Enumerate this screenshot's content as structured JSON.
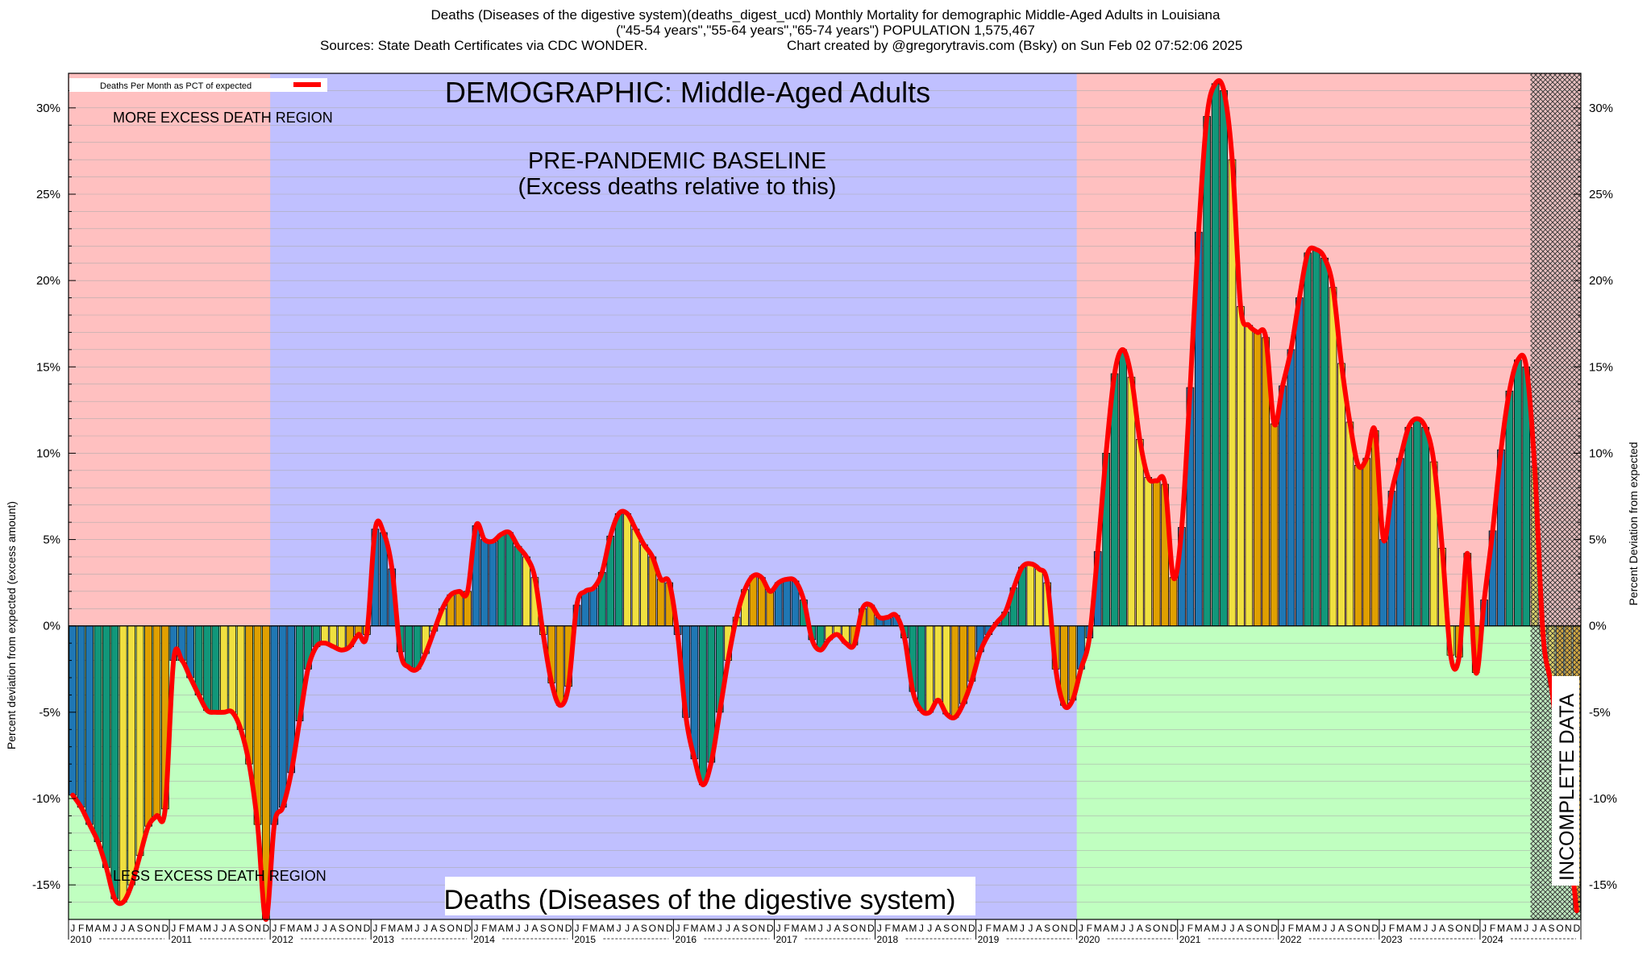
{
  "header": {
    "line1": "Deaths (Diseases of the digestive system)(deaths_digest_ucd) Monthly Mortality for demographic Middle-Aged Adults in Louisiana",
    "line2": "(\"45-54 years\",\"55-64 years\",\"65-74 years\") POPULATION 1,575,467",
    "line3_left": "Sources: State Death Certificates via CDC WONDER.",
    "line3_right": "Chart created by @gregorytravis.com (Bsky) on Sun Feb 02 07:52:06 2025"
  },
  "labels": {
    "demographic": "DEMOGRAPHIC: Middle-Aged Adults",
    "baseline_line1": "PRE-PANDEMIC BASELINE",
    "baseline_line2": "(Excess deaths relative to this)",
    "more_region": "MORE EXCESS DEATH REGION",
    "less_region": "LESS EXCESS DEATH REGION",
    "bottom_title": "Deaths (Diseases of the digestive system)",
    "incomplete": "INCOMPLETE DATA",
    "legend": "Deaths Per Month as PCT of expected",
    "ylabel_left": "Percent deviation from expected (excess amount)",
    "ylabel_right": "Percent Deviation from expected"
  },
  "colors": {
    "more_region": "#ffc0c0",
    "less_region": "#c0ffc0",
    "baseline_region": "#c0c0ff",
    "line": "#ff0000",
    "bar_colors": [
      "#1f77b4",
      "#11977a",
      "#f0e040",
      "#e0a000"
    ]
  },
  "chart_data": {
    "type": "bar",
    "start": "2010-01",
    "ylim": [
      -17,
      32
    ],
    "yticks": [
      -15,
      -10,
      -5,
      0,
      5,
      10,
      15,
      20,
      25,
      30
    ],
    "ytick_labels": [
      "-15%",
      "-10%",
      "-5%",
      "0%",
      "5%",
      "10%",
      "15%",
      "20%",
      "25%",
      "30%"
    ],
    "month_letters": [
      "J",
      "F",
      "M",
      "A",
      "M",
      "J",
      "J",
      "A",
      "S",
      "O",
      "N",
      "D"
    ],
    "years": [
      "2010",
      "2011",
      "2012",
      "2013",
      "2014",
      "2015",
      "2016",
      "2017",
      "2018",
      "2019",
      "2020",
      "2021",
      "2022",
      "2023",
      "2024"
    ],
    "baseline_years": [
      "2012",
      "2019"
    ],
    "incomplete_from": "2024-07",
    "series_name": "Deaths Per Month as PCT of expected",
    "values": [
      -9.8,
      -10.5,
      -11.5,
      -12.5,
      -14.0,
      -15.8,
      -16.0,
      -15.0,
      -13.3,
      -11.6,
      -11.0,
      -10.6,
      -2.0,
      -2.0,
      -3.0,
      -4.0,
      -4.9,
      -5.0,
      -5.0,
      -5.0,
      -6.0,
      -8.0,
      -11.5,
      -17.0,
      -11.5,
      -10.5,
      -8.5,
      -5.5,
      -2.5,
      -1.2,
      -1.0,
      -1.2,
      -1.4,
      -1.2,
      -0.5,
      -0.5,
      5.6,
      5.4,
      3.3,
      -1.5,
      -2.4,
      -2.5,
      -1.6,
      -0.3,
      1.0,
      1.8,
      2.0,
      2.0,
      5.8,
      5.0,
      4.9,
      5.3,
      5.4,
      4.6,
      4.0,
      2.8,
      -0.5,
      -3.3,
      -4.6,
      -3.5,
      1.2,
      2.0,
      2.2,
      3.1,
      5.2,
      6.5,
      6.5,
      5.6,
      4.7,
      4.0,
      2.7,
      2.5,
      -0.5,
      -5.3,
      -7.7,
      -9.2,
      -7.9,
      -5.0,
      -2.0,
      0.5,
      2.1,
      2.9,
      2.8,
      2.0,
      2.5,
      2.7,
      2.6,
      1.5,
      -0.8,
      -1.4,
      -0.8,
      -0.5,
      -1.0,
      -1.1,
      1.0,
      1.2,
      0.5,
      0.5,
      0.6,
      -0.7,
      -3.8,
      -4.9,
      -5.0,
      -4.3,
      -5.1,
      -5.3,
      -4.5,
      -3.2,
      -1.5,
      -0.5,
      0.2,
      0.8,
      2.2,
      3.4,
      3.6,
      3.3,
      2.5,
      -2.5,
      -4.6,
      -4.3,
      -2.5,
      -0.7,
      4.3,
      10.0,
      14.6,
      16.0,
      14.4,
      10.8,
      8.6,
      8.4,
      8.2,
      2.8,
      5.7,
      13.8,
      22.8,
      29.5,
      31.4,
      31.0,
      27.0,
      18.5,
      17.4,
      17.0,
      16.7,
      11.7,
      13.9,
      16.0,
      19.0,
      21.6,
      21.8,
      21.3,
      19.6,
      15.2,
      11.8,
      9.3,
      9.7,
      11.3,
      5.0,
      7.8,
      9.7,
      11.5,
      12.0,
      11.5,
      9.5,
      4.5,
      -1.7,
      -1.8,
      4.2,
      -2.7,
      1.5,
      5.5,
      10.2,
      13.6,
      15.4,
      15.0,
      9.2,
      -0.5,
      -3.5,
      -7.8,
      -12.0,
      -16.5
    ]
  }
}
